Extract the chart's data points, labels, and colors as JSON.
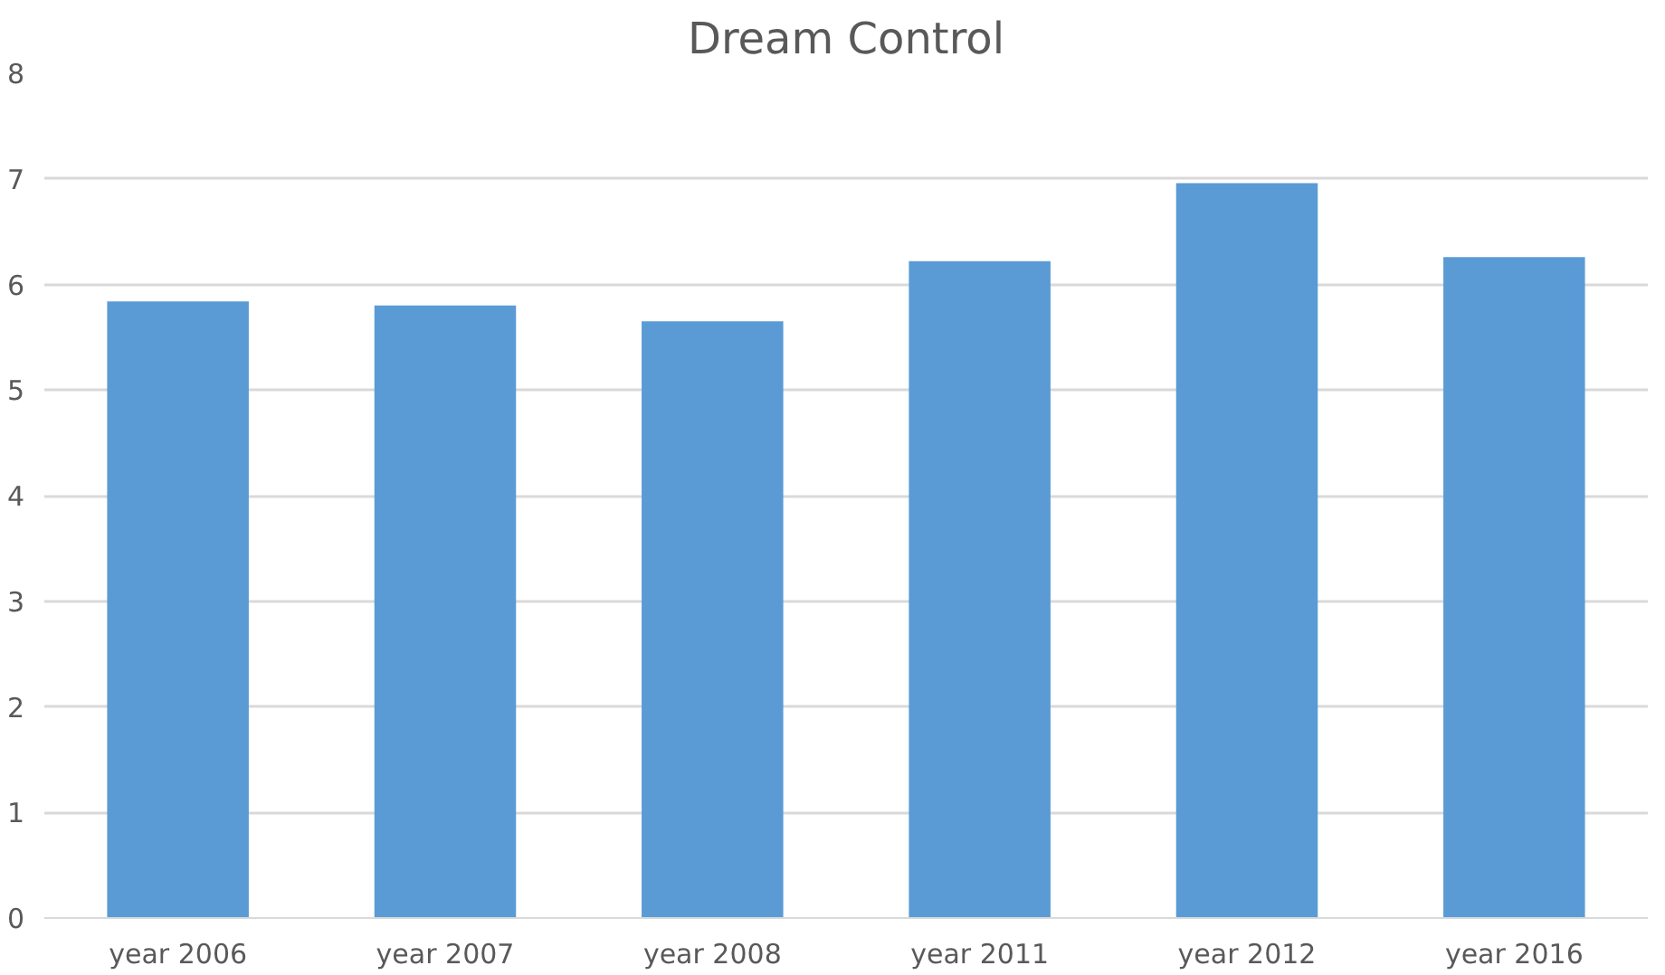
{
  "chart_data": {
    "type": "bar",
    "title": "Dream Control",
    "categories": [
      "year 2006",
      "year 2007",
      "year 2008",
      "year 2011",
      "year 2012",
      "year 2016"
    ],
    "values": [
      5.84,
      5.8,
      5.65,
      6.22,
      6.96,
      6.26
    ],
    "color": "#5b9bd5",
    "ylim": [
      0,
      8
    ],
    "yticks": [
      0,
      1,
      2,
      3,
      4,
      5,
      6,
      7,
      8
    ],
    "grid": "y"
  }
}
